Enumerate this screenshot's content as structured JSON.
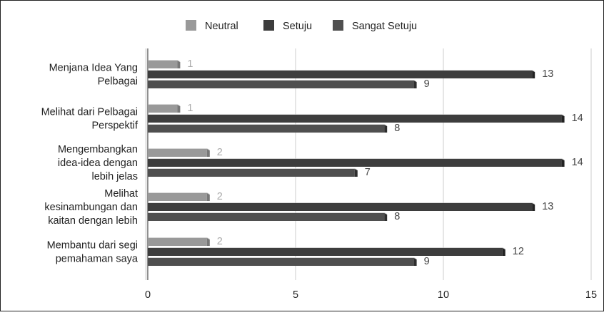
{
  "chart_data": {
    "type": "bar",
    "orientation": "horizontal",
    "categories": [
      [
        "Menjana Idea Yang",
        "Pelbagai"
      ],
      [
        "Melihat dari Pelbagai",
        "Perspektif"
      ],
      [
        "Mengembangkan",
        "idea-idea dengan",
        "lebih jelas"
      ],
      [
        "Melihat",
        "kesinambungan dan",
        "kaitan dengan lebih"
      ],
      [
        "Membantu dari segi",
        "pemahaman saya"
      ]
    ],
    "series": [
      {
        "name": "Neutral",
        "color": "#999999",
        "label_color": "#aaaaaa",
        "values": [
          1,
          1,
          2,
          2,
          2
        ]
      },
      {
        "name": "Setuju",
        "color": "#3d3d3d",
        "label_color": "#444444",
        "values": [
          13,
          14,
          14,
          13,
          12
        ]
      },
      {
        "name": "Sangat Setuju",
        "color": "#4f4f4f",
        "label_color": "#444444",
        "values": [
          9,
          8,
          7,
          8,
          9
        ]
      }
    ],
    "xlim": [
      0,
      15
    ],
    "xticks": [
      "0",
      "5",
      "10",
      "15"
    ],
    "grid": true,
    "legend": "top-center"
  }
}
